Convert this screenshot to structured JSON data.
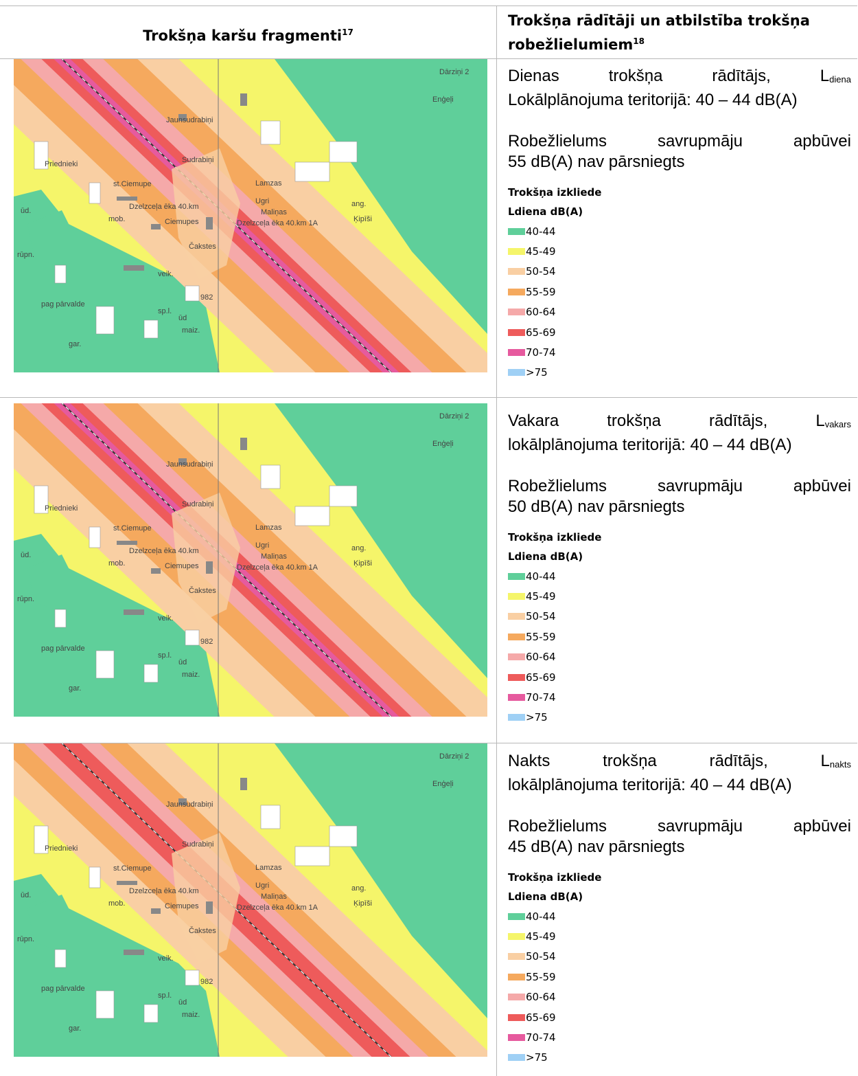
{
  "header": {
    "left_title": "Trokšņa karšu fragmenti",
    "left_sup": "17",
    "right_title_line1": "Trokšņa rādītāji un atbilstība trokšņa",
    "right_title_line2": "robežlielumiem",
    "right_sup": "18"
  },
  "rows": [
    {
      "indicator_words": [
        "Dienas",
        "trokšņa",
        "rādītājs,"
      ],
      "indicator_L": "L",
      "indicator_sub": "diena",
      "territory": "Lokālplānojuma teritorijā: 40 – 44 dB(A)",
      "limit_words": [
        "Robežlielums",
        "savrupmāju",
        "apbūvei"
      ],
      "limit_line2": "55 dB(A) nav pārsniegts",
      "legend_title": "Trokšņa izkliede",
      "legend_sub": "Ldiena dB(A)"
    },
    {
      "indicator_words": [
        "Vakara",
        "trokšņa",
        "rādītājs,"
      ],
      "indicator_L": "L",
      "indicator_sub": "vakars",
      "territory": "lokālplānojuma teritorijā: 40 – 44 dB(A)",
      "limit_words": [
        "Robežlielums",
        "savrupmāju",
        "apbūvei"
      ],
      "limit_line2": "50 dB(A) nav pārsniegts",
      "legend_title": "Trokšņa izkliede",
      "legend_sub": "Ldiena dB(A)"
    },
    {
      "indicator_words": [
        "Nakts",
        "trokšņa",
        "rādītājs,"
      ],
      "indicator_L": "L",
      "indicator_sub": "nakts",
      "territory": "lokālplānojuma teritorijā: 40 – 44 dB(A)",
      "limit_words": [
        "Robežlielums",
        "savrupmāju",
        "apbūvei"
      ],
      "limit_line2": "45 dB(A) nav pārsniegts",
      "legend_title": "Trokšņa izkliede",
      "legend_sub": "Ldiena dB(A)"
    }
  ],
  "legend_classes": [
    {
      "label": "40-44",
      "color": "#5fcf9a"
    },
    {
      "label": "45-49",
      "color": "#f5f56a"
    },
    {
      "label": "50-54",
      "color": "#f9cfa3"
    },
    {
      "label": "55-59",
      "color": "#f5a95e"
    },
    {
      "label": "60-64",
      "color": "#f5a9a9"
    },
    {
      "label": "65-69",
      "color": "#ee5b5b"
    },
    {
      "label": "70-74",
      "color": "#e65a9e"
    },
    {
      "label": ">75",
      "color": "#9fd0f5"
    }
  ],
  "map_labels": {
    "place_darzini": "Dārziņi 2",
    "place_engeli": "Enģeļi",
    "place_jaunsudrabini": "Jaunsudrabiņi",
    "place_sudrabini": "Sudrabiņi",
    "place_priednieki": "Priednieki",
    "place_lamzas": "Lamzas",
    "place_st_ciemupe": "st.Ciemupe",
    "place_ugri": "Ugri",
    "place_malinas": "Maliņas",
    "place_dzelzcela_eka": "Dzelzceļa ēka 40.km",
    "place_dzelzcela_eka_1a": "Dzelzceļa ēka 40.km 1A",
    "place_ciemupes": "Ciemupes",
    "place_kipisi": "Ķipīši",
    "place_cakstes": "Čakstes",
    "place_pag_parvalde": "pag pārvalde",
    "abbr_ud": "ūd.",
    "abbr_mob": "mob.",
    "abbr_rupn": "rūpn.",
    "abbr_veik": "veik.",
    "abbr_sp": "sp.l.",
    "abbr_ud2": "ūd",
    "abbr_maiz": "maiz.",
    "abbr_gar": "gar.",
    "abbr_ang": "ang.",
    "road_982": "982"
  }
}
